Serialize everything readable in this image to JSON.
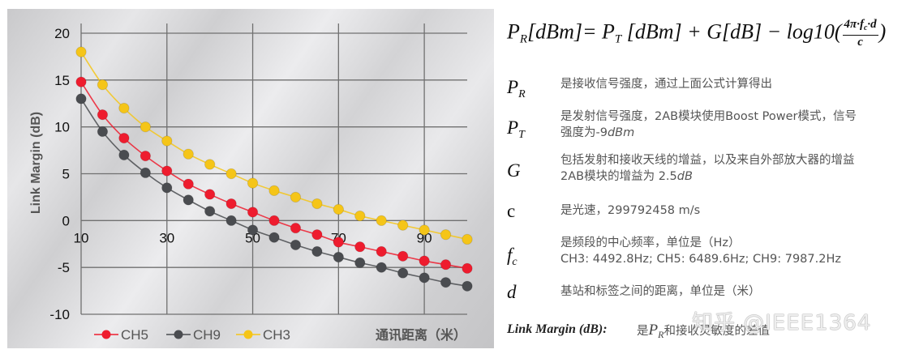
{
  "chart_data": {
    "type": "line",
    "title": "",
    "xlabel": "通讯距离（米）",
    "ylabel": "Link Margin (dB)",
    "xlim": [
      10,
      100
    ],
    "ylim": [
      -10,
      20
    ],
    "grid": true,
    "legend_position": "bottom-left",
    "x_ticks": [
      10,
      30,
      50,
      70,
      90
    ],
    "y_ticks": [
      20,
      15,
      10,
      5,
      0,
      -5,
      -10
    ],
    "x": [
      10,
      15,
      20,
      25,
      30,
      35,
      40,
      45,
      50,
      55,
      60,
      65,
      70,
      75,
      80,
      85,
      90,
      95,
      100
    ],
    "series": [
      {
        "name": "CH5",
        "color": "#ee1c2e",
        "values": [
          14.8,
          11.3,
          8.8,
          6.9,
          5.3,
          3.9,
          2.8,
          1.8,
          0.9,
          0.0,
          -0.8,
          -1.5,
          -2.3,
          -2.8,
          -3.3,
          -3.8,
          -4.3,
          -4.7,
          -5.1
        ]
      },
      {
        "name": "CH9",
        "color": "#4a4c50",
        "values": [
          13.0,
          9.5,
          7.0,
          5.1,
          3.5,
          2.2,
          1.0,
          0.0,
          -1.0,
          -1.8,
          -2.6,
          -3.3,
          -3.9,
          -4.5,
          -5.0,
          -5.6,
          -6.1,
          -6.6,
          -7.0
        ]
      },
      {
        "name": "CH3",
        "color": "#f5c518",
        "values": [
          18.0,
          14.5,
          12.0,
          10.0,
          8.5,
          7.1,
          6.0,
          5.0,
          4.0,
          3.2,
          2.5,
          1.8,
          1.2,
          0.5,
          0.0,
          -0.5,
          -1.0,
          -1.5,
          -2.0
        ]
      }
    ]
  },
  "right_panel": {
    "formula": {
      "lhs_sym": "P",
      "lhs_sub": "R",
      "lhs_unit": "[dBm]=",
      "pt_sym": "P",
      "pt_sub": "T",
      "pt_unit": "[dBm] + G[dB] − log10(",
      "frac_num": "4π·f",
      "frac_num_sub": "c",
      "frac_num_tail": "·d",
      "frac_den": "c",
      "close": ")"
    },
    "definitions": [
      {
        "sym": "P",
        "sub": "R",
        "lines": [
          "是接收信号强度，通过上面公式计算得出"
        ]
      },
      {
        "sym": "P",
        "sub": "T",
        "lines": [
          "是发射信号强度，2AB模块使用Boost Power模式，信号",
          "强度为-9"
        ],
        "unit": "dBm"
      },
      {
        "sym": "G",
        "sub": "",
        "lines": [
          "包括发射和接收天线的增益，以及来自外部放大器的增益",
          "2AB模块的增益为 2.5"
        ],
        "unit": "dB"
      },
      {
        "sym": "c",
        "sub": "",
        "lines": [
          "是光速，299792458 m/s"
        ]
      },
      {
        "sym": "f",
        "sub": "c",
        "lines": [
          "是频段的中心频率，单位是（Hz）",
          "CH3: 4492.8Hz; CH5: 6489.6Hz; CH9: 7987.2Hz"
        ]
      },
      {
        "sym": "d",
        "sub": "",
        "lines": [
          "基站和标签之间的距离，单位是（米）"
        ]
      }
    ],
    "link_margin": {
      "label": "Link Margin (dB):",
      "text_prefix": "是",
      "sym": "P",
      "sub": "R",
      "text_suffix": "和接收灵敏度的差值"
    },
    "watermark": "知乎 @IEEE1364"
  }
}
